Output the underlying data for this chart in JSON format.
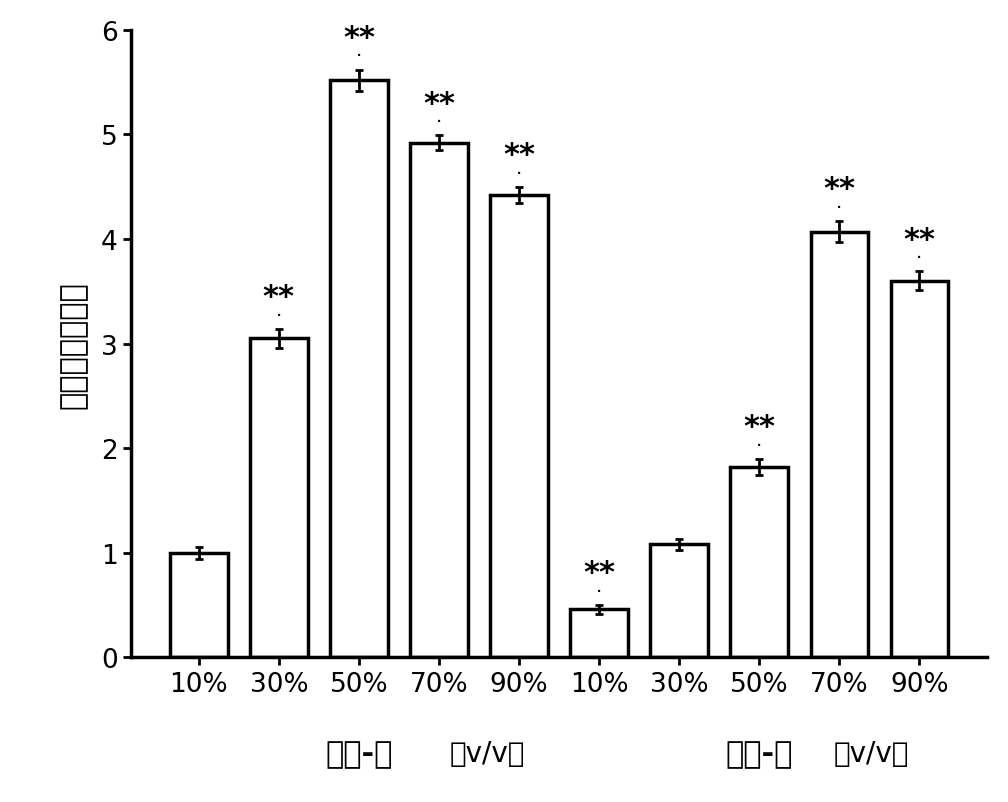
{
  "categories": [
    "10%",
    "30%",
    "50%",
    "70%",
    "90%",
    "10%",
    "30%",
    "50%",
    "70%",
    "90%"
  ],
  "values": [
    1.0,
    3.05,
    5.52,
    4.92,
    4.42,
    0.46,
    1.08,
    1.82,
    4.07,
    3.6
  ],
  "errors": [
    0.06,
    0.09,
    0.1,
    0.07,
    0.08,
    0.04,
    0.05,
    0.08,
    0.1,
    0.09
  ],
  "bar_color": "#ffffff",
  "bar_edgecolor": "#000000",
  "bar_linewidth": 2.5,
  "significance": [
    "",
    "**",
    "**",
    "**",
    "**",
    "**",
    "",
    "**",
    "**",
    "**"
  ],
  "has_dot": [
    false,
    true,
    true,
    true,
    true,
    true,
    false,
    true,
    true,
    true
  ],
  "ylabel_chars": [
    "相",
    "对",
    "吸",
    "附",
    "含",
    "量",
    "比"
  ],
  "ylim": [
    0,
    6
  ],
  "yticks": [
    0,
    1,
    2,
    3,
    4,
    5,
    6
  ],
  "xlabel_group1": "甲醇-水",
  "xlabel_group2": "（v/v）",
  "xlabel_group3": "乙醇-水",
  "xlabel_group4": "（v/v）",
  "background_color": "#ffffff",
  "figure_width": 10.08,
  "figure_height": 8.03,
  "bar_width": 0.72,
  "ecolor": "#000000",
  "capsize": 3,
  "tick_fontsize": 19,
  "annot_fontsize": 22,
  "ylabel_fontsize": 22,
  "xlabel_group_fontsize": 22,
  "dot_fontsize": 14
}
